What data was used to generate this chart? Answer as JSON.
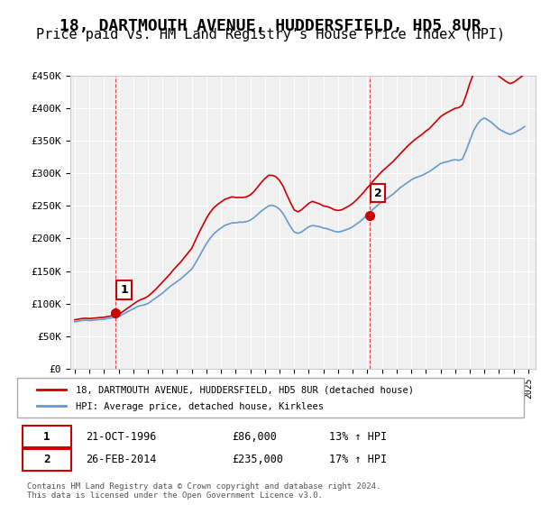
{
  "title": "18, DARTMOUTH AVENUE, HUDDERSFIELD, HD5 8UR",
  "subtitle": "Price paid vs. HM Land Registry's House Price Index (HPI)",
  "title_fontsize": 13,
  "subtitle_fontsize": 11,
  "xlabel": "",
  "ylabel": "",
  "ylim": [
    0,
    450000
  ],
  "yticks": [
    0,
    50000,
    100000,
    150000,
    200000,
    250000,
    300000,
    350000,
    400000,
    450000
  ],
  "ytick_labels": [
    "£0",
    "£50K",
    "£100K",
    "£150K",
    "£200K",
    "£250K",
    "£300K",
    "£350K",
    "£400K",
    "£450K"
  ],
  "xlim_start": 1994.0,
  "xlim_end": 2025.5,
  "xtick_years": [
    1994,
    1995,
    1996,
    1997,
    1998,
    1999,
    2000,
    2001,
    2002,
    2003,
    2004,
    2005,
    2006,
    2007,
    2008,
    2009,
    2010,
    2011,
    2012,
    2013,
    2014,
    2015,
    2016,
    2017,
    2018,
    2019,
    2020,
    2021,
    2022,
    2023,
    2024,
    2025
  ],
  "background_color": "#ffffff",
  "plot_bg_color": "#f0f0f0",
  "grid_color": "#ffffff",
  "red_line_color": "#cc0000",
  "blue_line_color": "#6699cc",
  "sale1_x": 1996.8,
  "sale1_y": 86000,
  "sale1_label": "1",
  "sale1_date": "21-OCT-1996",
  "sale1_price": "£86,000",
  "sale1_hpi": "13% ↑ HPI",
  "sale2_x": 2014.15,
  "sale2_y": 235000,
  "sale2_label": "2",
  "sale2_date": "26-FEB-2014",
  "sale2_price": "£235,000",
  "sale2_hpi": "17% ↑ HPI",
  "legend_line1": "18, DARTMOUTH AVENUE, HUDDERSFIELD, HD5 8UR (detached house)",
  "legend_line2": "HPI: Average price, detached house, Kirklees",
  "footer": "Contains HM Land Registry data © Crown copyright and database right 2024.\nThis data is licensed under the Open Government Licence v3.0.",
  "hpi_data_x": [
    1994.0,
    1994.25,
    1994.5,
    1994.75,
    1995.0,
    1995.25,
    1995.5,
    1995.75,
    1996.0,
    1996.25,
    1996.5,
    1996.75,
    1997.0,
    1997.25,
    1997.5,
    1997.75,
    1998.0,
    1998.25,
    1998.5,
    1998.75,
    1999.0,
    1999.25,
    1999.5,
    1999.75,
    2000.0,
    2000.25,
    2000.5,
    2000.75,
    2001.0,
    2001.25,
    2001.5,
    2001.75,
    2002.0,
    2002.25,
    2002.5,
    2002.75,
    2003.0,
    2003.25,
    2003.5,
    2003.75,
    2004.0,
    2004.25,
    2004.5,
    2004.75,
    2005.0,
    2005.25,
    2005.5,
    2005.75,
    2006.0,
    2006.25,
    2006.5,
    2006.75,
    2007.0,
    2007.25,
    2007.5,
    2007.75,
    2008.0,
    2008.25,
    2008.5,
    2008.75,
    2009.0,
    2009.25,
    2009.5,
    2009.75,
    2010.0,
    2010.25,
    2010.5,
    2010.75,
    2011.0,
    2011.25,
    2011.5,
    2011.75,
    2012.0,
    2012.25,
    2012.5,
    2012.75,
    2013.0,
    2013.25,
    2013.5,
    2013.75,
    2014.0,
    2014.25,
    2014.5,
    2014.75,
    2015.0,
    2015.25,
    2015.5,
    2015.75,
    2016.0,
    2016.25,
    2016.5,
    2016.75,
    2017.0,
    2017.25,
    2017.5,
    2017.75,
    2018.0,
    2018.25,
    2018.5,
    2018.75,
    2019.0,
    2019.25,
    2019.5,
    2019.75,
    2020.0,
    2020.25,
    2020.5,
    2020.75,
    2021.0,
    2021.25,
    2021.5,
    2021.75,
    2022.0,
    2022.25,
    2022.5,
    2022.75,
    2023.0,
    2023.25,
    2023.5,
    2023.75,
    2024.0,
    2024.25,
    2024.5,
    2024.75
  ],
  "hpi_data_y": [
    72000,
    73000,
    74000,
    74500,
    74000,
    74500,
    75000,
    75500,
    76000,
    77000,
    78000,
    79000,
    80000,
    83000,
    86000,
    89000,
    92000,
    95000,
    97000,
    98000,
    100000,
    104000,
    108000,
    112000,
    116000,
    121000,
    126000,
    130000,
    134000,
    138000,
    143000,
    148000,
    153000,
    162000,
    172000,
    182000,
    192000,
    200000,
    207000,
    212000,
    216000,
    220000,
    222000,
    224000,
    224000,
    225000,
    225000,
    226000,
    228000,
    232000,
    237000,
    242000,
    246000,
    250000,
    251000,
    249000,
    245000,
    238000,
    228000,
    218000,
    210000,
    208000,
    210000,
    214000,
    218000,
    220000,
    219000,
    218000,
    216000,
    215000,
    213000,
    211000,
    210000,
    211000,
    213000,
    215000,
    218000,
    222000,
    226000,
    231000,
    237000,
    242000,
    247000,
    252000,
    256000,
    260000,
    264000,
    268000,
    273000,
    278000,
    282000,
    286000,
    290000,
    293000,
    295000,
    297000,
    300000,
    303000,
    307000,
    311000,
    315000,
    317000,
    318000,
    320000,
    321000,
    320000,
    322000,
    335000,
    350000,
    365000,
    375000,
    382000,
    385000,
    382000,
    378000,
    373000,
    368000,
    365000,
    362000,
    360000,
    362000,
    365000,
    368000,
    372000
  ],
  "price_data_x": [
    1994.0,
    1994.25,
    1994.5,
    1994.75,
    1995.0,
    1995.25,
    1995.5,
    1995.75,
    1996.0,
    1996.25,
    1996.5,
    1996.75,
    1997.0,
    1997.25,
    1997.5,
    1997.75,
    1998.0,
    1998.25,
    1998.5,
    1998.75,
    1999.0,
    1999.25,
    1999.5,
    1999.75,
    2000.0,
    2000.25,
    2000.5,
    2000.75,
    2001.0,
    2001.25,
    2001.5,
    2001.75,
    2002.0,
    2002.25,
    2002.5,
    2002.75,
    2003.0,
    2003.25,
    2003.5,
    2003.75,
    2004.0,
    2004.25,
    2004.5,
    2004.75,
    2005.0,
    2005.25,
    2005.5,
    2005.75,
    2006.0,
    2006.25,
    2006.5,
    2006.75,
    2007.0,
    2007.25,
    2007.5,
    2007.75,
    2008.0,
    2008.25,
    2008.5,
    2008.75,
    2009.0,
    2009.25,
    2009.5,
    2009.75,
    2010.0,
    2010.25,
    2010.5,
    2010.75,
    2011.0,
    2011.25,
    2011.5,
    2011.75,
    2012.0,
    2012.25,
    2012.5,
    2012.75,
    2013.0,
    2013.25,
    2013.5,
    2013.75,
    2014.0,
    2014.25,
    2014.5,
    2014.75,
    2015.0,
    2015.25,
    2015.5,
    2015.75,
    2016.0,
    2016.25,
    2016.5,
    2016.75,
    2017.0,
    2017.25,
    2017.5,
    2017.75,
    2018.0,
    2018.25,
    2018.5,
    2018.75,
    2019.0,
    2019.25,
    2019.5,
    2019.75,
    2020.0,
    2020.25,
    2020.5,
    2020.75,
    2021.0,
    2021.25,
    2021.5,
    2021.75,
    2022.0,
    2022.25,
    2022.5,
    2022.75,
    2023.0,
    2023.25,
    2023.5,
    2023.75,
    2024.0,
    2024.25,
    2024.5,
    2024.75
  ],
  "price_data_y": [
    75000,
    76000,
    77000,
    77500,
    77000,
    77500,
    78000,
    78500,
    79000,
    80000,
    81000,
    82000,
    83000,
    87000,
    91000,
    95000,
    99000,
    103000,
    106000,
    108000,
    111000,
    116000,
    121000,
    127000,
    133000,
    139000,
    145000,
    152000,
    158000,
    164000,
    171000,
    178000,
    185000,
    197000,
    209000,
    220000,
    231000,
    240000,
    247000,
    252000,
    256000,
    260000,
    262000,
    264000,
    263000,
    263000,
    263000,
    264000,
    267000,
    272000,
    279000,
    286000,
    292000,
    297000,
    297000,
    295000,
    289000,
    280000,
    267000,
    255000,
    244000,
    241000,
    244000,
    249000,
    254000,
    257000,
    255000,
    253000,
    250000,
    249000,
    247000,
    244000,
    243000,
    244000,
    247000,
    250000,
    254000,
    259000,
    265000,
    271000,
    278000,
    284000,
    291000,
    297000,
    303000,
    308000,
    313000,
    318000,
    324000,
    330000,
    336000,
    342000,
    347000,
    352000,
    356000,
    360000,
    365000,
    369000,
    375000,
    381000,
    387000,
    391000,
    394000,
    397000,
    400000,
    401000,
    405000,
    420000,
    438000,
    453000,
    464000,
    470000,
    472000,
    468000,
    462000,
    456000,
    449000,
    445000,
    441000,
    438000,
    440000,
    444000,
    448000,
    453000
  ]
}
